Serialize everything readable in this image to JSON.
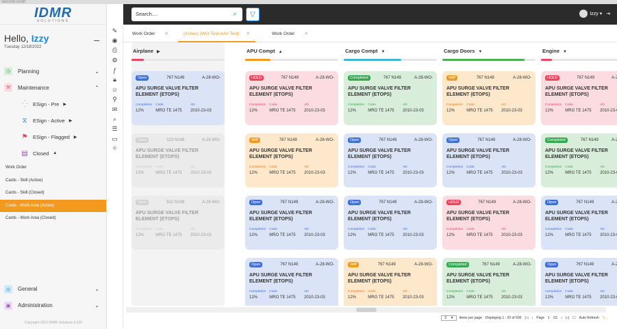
{
  "topstrip": "Second Draft",
  "logo": {
    "text": "IDMR",
    "sub": "SOLUTIONS"
  },
  "greeting": {
    "hello": "Hello,",
    "name": "Izzy",
    "date": "Tuesday 12/18/2022",
    "collapse": "–"
  },
  "nav": {
    "planning": "Planning",
    "maintenance": "Maintenance",
    "esign_pre": "ESign - Pre",
    "esign_active": "ESign - Active",
    "esign_flagged": "ESign - Flagged",
    "closed": "Closed",
    "work_order": "Work Order",
    "cards_skill_active": "Cards - Skill (Active)",
    "cards_skill_closed": "Cards - Skill (Closed)",
    "cards_wa_active": "Cards - Work Area (Active)",
    "cards_wa_closed": "Cards - Work Area (Closed)",
    "general": "General",
    "administration": "Administration"
  },
  "copyright": "Copyright 2022 IDMR Solutions 4.329",
  "header": {
    "search_placeholder": "Search....",
    "user": "Izzy"
  },
  "tabs": [
    "Work Order",
    "(Active) (WO-Test-AAir Test)",
    "Work Order"
  ],
  "columns": [
    {
      "name": "Airplane",
      "arrow": "▶",
      "progress": 0.13,
      "color": "#e8465f"
    },
    {
      "name": "APU Compt",
      "arrow": "▲",
      "progress": 0.27,
      "color": "#f39a1e"
    },
    {
      "name": "Cargo Compt",
      "arrow": "▼",
      "progress": 0.62,
      "color": "#3fb6d8"
    },
    {
      "name": "Cargo Doors",
      "arrow": "▼",
      "progress": 0.88,
      "color": "#4caf50"
    },
    {
      "name": "Engine",
      "arrow": "▼",
      "progress": 0.12,
      "color": "#e8465f"
    }
  ],
  "card_common": {
    "qty": "767 N149",
    "wo": "A-28-WO-",
    "title": "APU SURGE VALVE FILTER ELEMENT (ETOPS)",
    "lbl_completion": "Completion",
    "lbl_code": "Code",
    "lbl_ad": "AD",
    "completion": "12%",
    "code": "MRO TE 1475",
    "ad": "2010-23-03"
  },
  "airplane_cards": [
    {
      "status": "Open",
      "qty": "767 N149"
    },
    {
      "status": "Open",
      "qty": "123 N149"
    },
    {
      "status": "Open",
      "qty": "532 N149"
    }
  ],
  "card_grid": [
    [
      "HOLD",
      "Completed",
      "WIP",
      "HOLD"
    ],
    [
      "WIP",
      "Open",
      "Open",
      "Completed"
    ],
    [
      "Open",
      "Open",
      "HOLD",
      "Open"
    ],
    [
      "Open",
      "WIP",
      "Completed",
      "Open"
    ]
  ],
  "status_colors": {
    "Open": {
      "badge": "#3b6fd1",
      "bg": "#dbe4f6",
      "accent": "#3b6fd1"
    },
    "HOLD": {
      "badge": "#e8465f",
      "bg": "#fbdde1",
      "accent": "#e8465f"
    },
    "Completed": {
      "badge": "#36a852",
      "bg": "#d8eedb",
      "accent": "#36a852"
    },
    "WIP": {
      "badge": "#f39a1e",
      "bg": "#fde8cc",
      "accent": "#e5791c"
    }
  },
  "pager": {
    "size": "3",
    "items_per_page": "Items per page",
    "displaying": "Displaying 1 - 20 of 500",
    "page_label": "Page",
    "page": "1",
    "total": "/11",
    "auto_refresh": "Auto Refresh"
  }
}
